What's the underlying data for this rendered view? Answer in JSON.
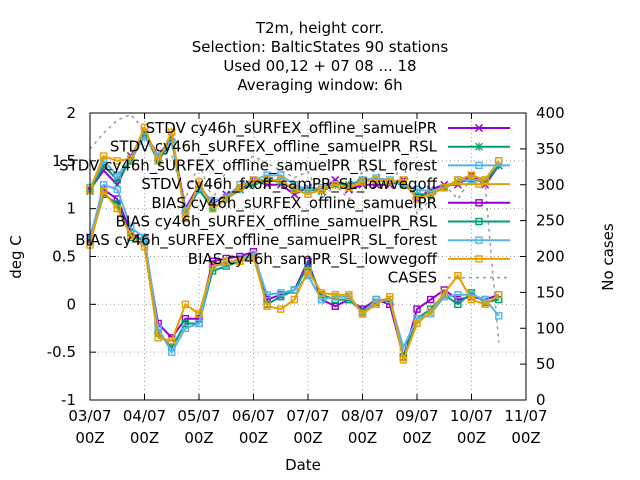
{
  "chart_data": {
    "type": "line",
    "title_lines": [
      "T2m, height corr.",
      "Selection: BalticStates     90 stations",
      "Used  00,12  + 07 08 ... 18",
      "Averaging window:  6h"
    ],
    "xlabel": "Date",
    "ylabel": "deg C",
    "y2label": "No cases",
    "x_ticks": [
      {
        "line1": "03/07",
        "line2": "00Z"
      },
      {
        "line1": "04/07",
        "line2": "00Z"
      },
      {
        "line1": "05/07",
        "line2": "00Z"
      },
      {
        "line1": "06/07",
        "line2": "00Z"
      },
      {
        "line1": "07/07",
        "line2": "00Z"
      },
      {
        "line1": "08/07",
        "line2": "00Z"
      },
      {
        "line1": "09/07",
        "line2": "00Z"
      },
      {
        "line1": "10/07",
        "line2": "00Z"
      },
      {
        "line1": "11/07",
        "line2": "00Z"
      }
    ],
    "xlim_hours": [
      0,
      192
    ],
    "ylim": [
      -1,
      2
    ],
    "y_ticks": [
      "-1",
      "-0.5",
      "0",
      "0.5",
      "1",
      "1.5",
      "2"
    ],
    "y2lim": [
      0,
      400
    ],
    "y2_ticks": [
      "0",
      "50",
      "100",
      "150",
      "200",
      "250",
      "300",
      "350",
      "400"
    ],
    "grid": true,
    "legend_position": "top-right",
    "x_hours": [
      0,
      6,
      12,
      18,
      24,
      30,
      36,
      42,
      48,
      54,
      60,
      66,
      72,
      78,
      84,
      90,
      96,
      102,
      108,
      114,
      120,
      126,
      132,
      138,
      144,
      150,
      156,
      162,
      168,
      174,
      180
    ],
    "series": [
      {
        "name": "STDV cy46h_sURFEX_offline_samuelPR",
        "color": "#9400d3",
        "marker": "x",
        "axis": "y1",
        "values": [
          1.2,
          1.4,
          1.25,
          1.55,
          1.8,
          1.55,
          1.75,
          1.0,
          1.25,
          1.05,
          1.15,
          1.2,
          1.3,
          1.25,
          1.25,
          1.15,
          1.22,
          1.2,
          1.3,
          1.2,
          1.25,
          1.25,
          1.25,
          1.3,
          1.1,
          1.2,
          1.25,
          1.25,
          1.35,
          1.25,
          1.45
        ]
      },
      {
        "name": "STDV cy46h_sURFEX_offline_samuelPR_RSL",
        "color": "#009e73",
        "marker": "star",
        "axis": "y1",
        "values": [
          1.18,
          1.45,
          1.3,
          1.5,
          1.78,
          1.5,
          1.7,
          0.95,
          1.2,
          1.0,
          1.1,
          1.2,
          1.25,
          1.3,
          1.28,
          1.2,
          1.2,
          1.18,
          1.25,
          1.25,
          1.3,
          1.3,
          1.28,
          1.25,
          1.15,
          1.15,
          1.22,
          1.28,
          1.3,
          1.28,
          1.45
        ]
      },
      {
        "name": "STDV cy46h_sURFEX_offline_samuelPR_RSL_forest",
        "color": "#56b4e9",
        "marker": "square-open",
        "axis": "y1",
        "values": [
          1.22,
          1.5,
          1.35,
          1.52,
          1.75,
          1.55,
          1.7,
          0.98,
          1.22,
          1.08,
          1.12,
          1.25,
          1.3,
          1.35,
          1.35,
          1.25,
          1.2,
          1.22,
          1.25,
          1.22,
          1.3,
          1.32,
          1.3,
          1.25,
          1.2,
          1.18,
          1.22,
          1.3,
          1.3,
          1.3,
          1.5
        ]
      },
      {
        "name": "STDV cy46h_fxoff_samPR_SL_lowvegoff",
        "color": "#e69f00",
        "marker": "square-open",
        "axis": "y1",
        "values": [
          1.2,
          1.55,
          1.5,
          1.52,
          1.85,
          1.5,
          1.8,
          0.9,
          1.28,
          1.0,
          1.1,
          1.22,
          1.3,
          1.3,
          1.3,
          1.2,
          1.15,
          1.2,
          1.25,
          1.22,
          1.28,
          1.3,
          1.28,
          1.3,
          1.1,
          1.15,
          1.22,
          1.3,
          1.35,
          1.3,
          1.5
        ]
      },
      {
        "name": "BIAS cy46h_sURFEX_offline_samuelPR",
        "color": "#9400d3",
        "marker": "square-open",
        "axis": "y1",
        "values": [
          0.7,
          1.2,
          1.1,
          0.75,
          0.65,
          -0.2,
          -0.35,
          -0.15,
          -0.15,
          0.45,
          0.48,
          0.5,
          0.55,
          0.05,
          0.1,
          0.15,
          0.45,
          0.05,
          -0.02,
          0.05,
          -0.05,
          0.05,
          0.0,
          -0.55,
          -0.05,
          0.05,
          0.15,
          0.05,
          0.08,
          0.05,
          0.1
        ]
      },
      {
        "name": "BIAS cy46h_sURFEX_offline_samuelPR_RSL",
        "color": "#009e73",
        "marker": "square-open",
        "axis": "y1",
        "values": [
          0.65,
          1.15,
          1.05,
          0.7,
          0.68,
          -0.3,
          -0.45,
          -0.2,
          -0.2,
          0.35,
          0.4,
          0.45,
          0.5,
          0.0,
          0.08,
          0.15,
          0.4,
          0.1,
          0.05,
          0.05,
          -0.08,
          0.02,
          0.05,
          -0.55,
          -0.15,
          -0.05,
          0.1,
          0.0,
          0.12,
          0.02,
          0.05
        ]
      },
      {
        "name": "BIAS cy46h_sURFEX_offline_samuelPR_SL_forest",
        "color": "#56b4e9",
        "marker": "square-open",
        "axis": "y1",
        "values": [
          0.68,
          1.25,
          1.2,
          0.8,
          0.7,
          -0.25,
          -0.5,
          -0.25,
          -0.2,
          0.4,
          0.42,
          0.48,
          0.52,
          0.1,
          0.12,
          0.15,
          0.3,
          0.05,
          0.08,
          0.08,
          -0.1,
          0.05,
          0.05,
          -0.45,
          -0.15,
          -0.1,
          0.08,
          0.1,
          0.1,
          0.05,
          -0.12
        ]
      },
      {
        "name": "BIAS cy46h_samPR_SL_lowvegoff",
        "color": "#e69f00",
        "marker": "square-open",
        "axis": "y1",
        "values": [
          0.62,
          1.18,
          1.0,
          0.72,
          0.6,
          -0.35,
          -0.38,
          0.0,
          -0.1,
          0.4,
          0.45,
          0.45,
          0.5,
          -0.02,
          -0.05,
          0.05,
          0.35,
          0.12,
          0.1,
          0.1,
          -0.1,
          0.0,
          0.08,
          -0.58,
          -0.2,
          -0.08,
          0.12,
          0.3,
          0.05,
          0.0,
          0.1
        ]
      },
      {
        "name": "CASES",
        "color": "#999999",
        "marker": "none",
        "dashed": true,
        "axis": "y2",
        "values": [
          350,
          372,
          390,
          398,
          376,
          330,
          340,
          280,
          330,
          280,
          320,
          330,
          340,
          330,
          320,
          310,
          318,
          280,
          300,
          280,
          320,
          318,
          300,
          330,
          260,
          280,
          300,
          280,
          310,
          300,
          80
        ]
      }
    ]
  }
}
